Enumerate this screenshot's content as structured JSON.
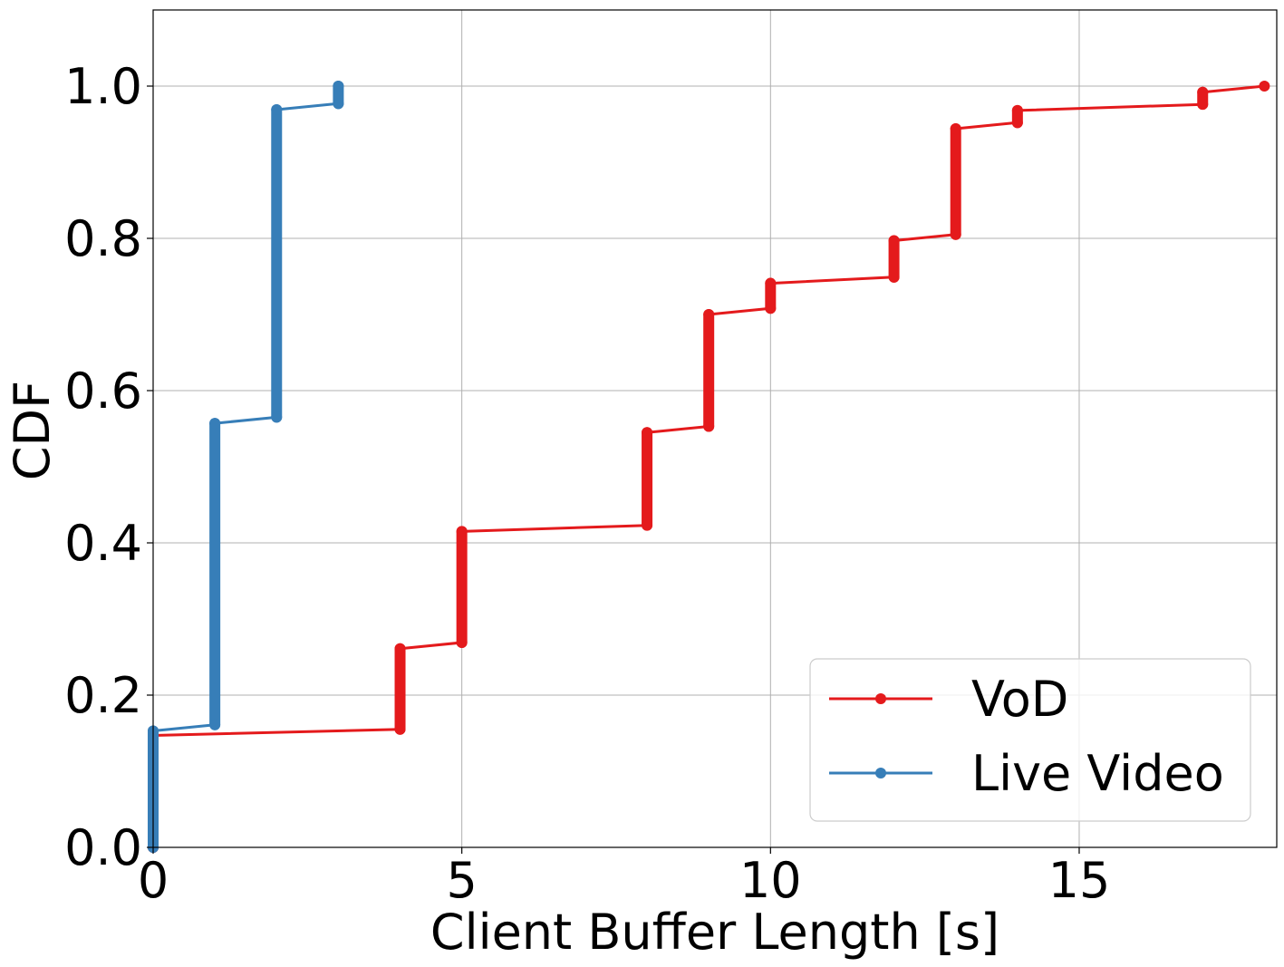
{
  "chart_data": {
    "type": "line",
    "title": "",
    "xlabel": "Client Buffer Length [s]",
    "ylabel": "CDF",
    "xlim": [
      0,
      18.2
    ],
    "ylim": [
      0,
      1.1
    ],
    "xticks": [
      0,
      5,
      10,
      15
    ],
    "xtick_labels": [
      "0",
      "5",
      "10",
      "15"
    ],
    "yticks": [
      0.0,
      0.2,
      0.4,
      0.6,
      0.8,
      1.0
    ],
    "ytick_labels": [
      "0.0",
      "0.2",
      "0.4",
      "0.6",
      "0.8",
      "1.0"
    ],
    "grid": true,
    "legend_position": "lower-right",
    "series": [
      {
        "name": "VoD",
        "color": "#e41a1c",
        "marker": "circle",
        "steps": [
          {
            "x": 0,
            "y_from": 0.0,
            "y_to": 0.147
          },
          {
            "x": 4,
            "y_from": 0.155,
            "y_to": 0.261
          },
          {
            "x": 5,
            "y_from": 0.269,
            "y_to": 0.415
          },
          {
            "x": 8,
            "y_from": 0.423,
            "y_to": 0.545
          },
          {
            "x": 9,
            "y_from": 0.553,
            "y_to": 0.7
          },
          {
            "x": 10,
            "y_from": 0.708,
            "y_to": 0.741
          },
          {
            "x": 12,
            "y_from": 0.749,
            "y_to": 0.797
          },
          {
            "x": 13,
            "y_from": 0.805,
            "y_to": 0.944
          },
          {
            "x": 14,
            "y_from": 0.952,
            "y_to": 0.968
          },
          {
            "x": 17,
            "y_from": 0.976,
            "y_to": 0.992
          },
          {
            "x": 18,
            "y_from": 1.0,
            "y_to": 1.0
          }
        ]
      },
      {
        "name": "Live Video",
        "color": "#377eb8",
        "marker": "circle",
        "steps": [
          {
            "x": 0,
            "y_from": 0.0,
            "y_to": 0.153
          },
          {
            "x": 1,
            "y_from": 0.161,
            "y_to": 0.557
          },
          {
            "x": 2,
            "y_from": 0.565,
            "y_to": 0.969
          },
          {
            "x": 3,
            "y_from": 0.977,
            "y_to": 1.0
          }
        ]
      }
    ]
  }
}
